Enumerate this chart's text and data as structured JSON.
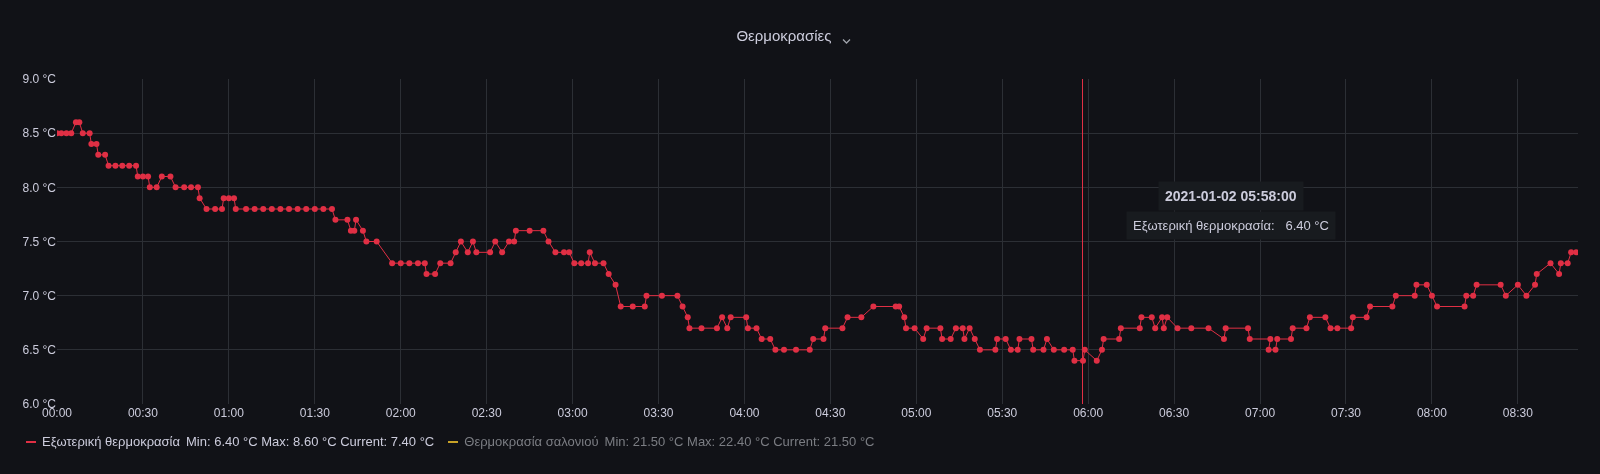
{
  "chart_data": {
    "type": "line",
    "title": "Θερμοκρασίες",
    "xlim": [
      0,
      8.85
    ],
    "xticks": [
      {
        "value": 0,
        "label": "00:00"
      },
      {
        "value": 0.5,
        "label": "00:30"
      },
      {
        "value": 1,
        "label": "01:00"
      },
      {
        "value": 1.5,
        "label": "01:30"
      },
      {
        "value": 2,
        "label": "02:00"
      },
      {
        "value": 2.5,
        "label": "02:30"
      },
      {
        "value": 3,
        "label": "03:00"
      },
      {
        "value": 3.5,
        "label": "03:30"
      },
      {
        "value": 4,
        "label": "04:00"
      },
      {
        "value": 4.5,
        "label": "04:30"
      },
      {
        "value": 5,
        "label": "05:00"
      },
      {
        "value": 5.5,
        "label": "05:30"
      },
      {
        "value": 6,
        "label": "06:00"
      },
      {
        "value": 6.5,
        "label": "06:30"
      },
      {
        "value": 7,
        "label": "07:00"
      },
      {
        "value": 7.5,
        "label": "07:30"
      },
      {
        "value": 8,
        "label": "08:00"
      },
      {
        "value": 8.5,
        "label": "08:30"
      }
    ],
    "ylim": [
      6,
      9
    ],
    "yticks": [
      {
        "value": 6,
        "label": "6.0 °C"
      },
      {
        "value": 6.5,
        "label": "6.5 °C"
      },
      {
        "value": 7,
        "label": "7.0 °C"
      },
      {
        "value": 7.5,
        "label": "7.5 °C"
      },
      {
        "value": 8,
        "label": "8.0 °C"
      },
      {
        "value": 8.5,
        "label": "8.5 °C"
      },
      {
        "value": 9,
        "label": "9.0 °C"
      }
    ],
    "grid": true,
    "marker": "circle",
    "line_style": "solid",
    "legend": "bottom left",
    "series": [
      {
        "name": "Εξωτερική θερμοκρασία",
        "color": "#e02f44",
        "x": [
          0,
          0.025,
          0.055,
          0.083,
          0.11,
          0.13,
          0.15,
          0.19,
          0.2,
          0.23,
          0.24,
          0.28,
          0.3,
          0.34,
          0.38,
          0.42,
          0.46,
          0.47,
          0.5,
          0.53,
          0.54,
          0.58,
          0.61,
          0.66,
          0.69,
          0.74,
          0.78,
          0.82,
          0.83,
          0.87,
          0.92,
          0.96,
          0.97,
          1.0,
          1.03,
          1.04,
          1.1,
          1.15,
          1.2,
          1.25,
          1.3,
          1.35,
          1.4,
          1.45,
          1.5,
          1.55,
          1.6,
          1.62,
          1.69,
          1.71,
          1.73,
          1.74,
          1.78,
          1.8,
          1.86,
          1.95,
          2.0,
          2.05,
          2.1,
          2.14,
          2.15,
          2.2,
          2.23,
          2.29,
          2.32,
          2.35,
          2.39,
          2.42,
          2.44,
          2.52,
          2.55,
          2.59,
          2.63,
          2.66,
          2.67,
          2.75,
          2.83,
          2.86,
          2.9,
          2.95,
          2.98,
          3.01,
          3.05,
          3.09,
          3.1,
          3.13,
          3.18,
          3.21,
          3.25,
          3.28,
          3.35,
          3.42,
          3.43,
          3.52,
          3.61,
          3.64,
          3.67,
          3.68,
          3.75,
          3.84,
          3.87,
          3.9,
          3.92,
          4.01,
          4.02,
          4.07,
          4.1,
          4.15,
          4.18,
          4.23,
          4.3,
          4.38,
          4.4,
          4.46,
          4.47,
          4.57,
          4.6,
          4.68,
          4.75,
          4.88,
          4.9,
          4.93,
          4.94,
          4.99,
          5.04,
          5.06,
          5.14,
          5.15,
          5.2,
          5.23,
          5.27,
          5.28,
          5.31,
          5.34,
          5.37,
          5.46,
          5.47,
          5.52,
          5.55,
          5.59,
          5.6,
          5.67,
          5.68,
          5.74,
          5.76,
          5.8,
          5.86,
          5.91,
          5.92,
          5.97,
          5.98,
          6.05,
          6.08,
          6.09,
          6.18,
          6.19,
          6.3,
          6.31,
          6.37,
          6.39,
          6.43,
          6.44,
          6.46,
          6.52,
          6.6,
          6.7,
          6.79,
          6.8,
          6.93,
          6.94,
          7.06,
          7.05,
          7.09,
          7.1,
          7.18,
          7.19,
          7.27,
          7.29,
          7.38,
          7.41,
          7.45,
          7.53,
          7.54,
          7.62,
          7.64,
          7.77,
          7.79,
          7.9,
          7.91,
          7.97,
          8.0,
          8.03,
          8.19,
          8.2,
          8.24,
          8.26,
          8.4,
          8.43,
          8.5,
          8.55,
          8.6,
          8.61,
          8.69,
          8.74,
          8.75,
          8.79,
          8.81,
          8.84
        ],
        "values": [
          8.5,
          8.5,
          8.5,
          8.5,
          8.6,
          8.6,
          8.5,
          8.5,
          8.4,
          8.4,
          8.3,
          8.3,
          8.2,
          8.2,
          8.2,
          8.2,
          8.2,
          8.1,
          8.1,
          8.1,
          8.0,
          8.0,
          8.1,
          8.1,
          8.0,
          8.0,
          8.0,
          8.0,
          7.9,
          7.8,
          7.8,
          7.8,
          7.9,
          7.9,
          7.9,
          7.8,
          7.8,
          7.8,
          7.8,
          7.8,
          7.8,
          7.8,
          7.8,
          7.8,
          7.8,
          7.8,
          7.8,
          7.7,
          7.7,
          7.6,
          7.6,
          7.7,
          7.6,
          7.5,
          7.5,
          7.3,
          7.3,
          7.3,
          7.3,
          7.3,
          7.2,
          7.2,
          7.3,
          7.3,
          7.4,
          7.5,
          7.4,
          7.5,
          7.4,
          7.4,
          7.5,
          7.4,
          7.5,
          7.5,
          7.6,
          7.6,
          7.6,
          7.5,
          7.4,
          7.4,
          7.4,
          7.3,
          7.3,
          7.3,
          7.4,
          7.3,
          7.3,
          7.2,
          7.1,
          6.9,
          6.9,
          6.9,
          7.0,
          7.0,
          7.0,
          6.9,
          6.8,
          6.7,
          6.7,
          6.7,
          6.8,
          6.7,
          6.8,
          6.8,
          6.7,
          6.7,
          6.6,
          6.6,
          6.5,
          6.5,
          6.5,
          6.5,
          6.6,
          6.6,
          6.7,
          6.7,
          6.8,
          6.8,
          6.9,
          6.9,
          6.9,
          6.8,
          6.7,
          6.7,
          6.6,
          6.7,
          6.7,
          6.6,
          6.6,
          6.7,
          6.7,
          6.6,
          6.7,
          6.6,
          6.5,
          6.5,
          6.6,
          6.6,
          6.5,
          6.5,
          6.6,
          6.6,
          6.5,
          6.5,
          6.6,
          6.5,
          6.5,
          6.5,
          6.4,
          6.4,
          6.5,
          6.4,
          6.5,
          6.6,
          6.6,
          6.7,
          6.7,
          6.8,
          6.8,
          6.7,
          6.8,
          6.7,
          6.8,
          6.7,
          6.7,
          6.7,
          6.6,
          6.7,
          6.7,
          6.6,
          6.6,
          6.5,
          6.5,
          6.6,
          6.6,
          6.7,
          6.7,
          6.8,
          6.8,
          6.7,
          6.7,
          6.7,
          6.8,
          6.8,
          6.9,
          6.9,
          7.0,
          7.0,
          7.1,
          7.1,
          7.0,
          6.9,
          6.9,
          7.0,
          7.0,
          7.1,
          7.1,
          7.0,
          7.1,
          7.0,
          7.1,
          7.2,
          7.3,
          7.2,
          7.3,
          7.3,
          7.4,
          7.4
        ]
      },
      {
        "name": "Θερμοκρασία σαλονιού",
        "color": "#c8a227"
      }
    ],
    "ref_lines": [
      {
        "axis": "x",
        "value": 5.967,
        "color": "#e02f44"
      }
    ],
    "annotations": [
      "Min: 6.40 °C  Max: 8.60 °C  Current: 7.40 °C",
      "Min: 21.50 °C  Max: 22.40 °C  Current: 21.50 °C",
      "2021-01-02 05:58:00",
      "Εξωτερική θερμοκρασία:   6.40 °C"
    ]
  }
}
